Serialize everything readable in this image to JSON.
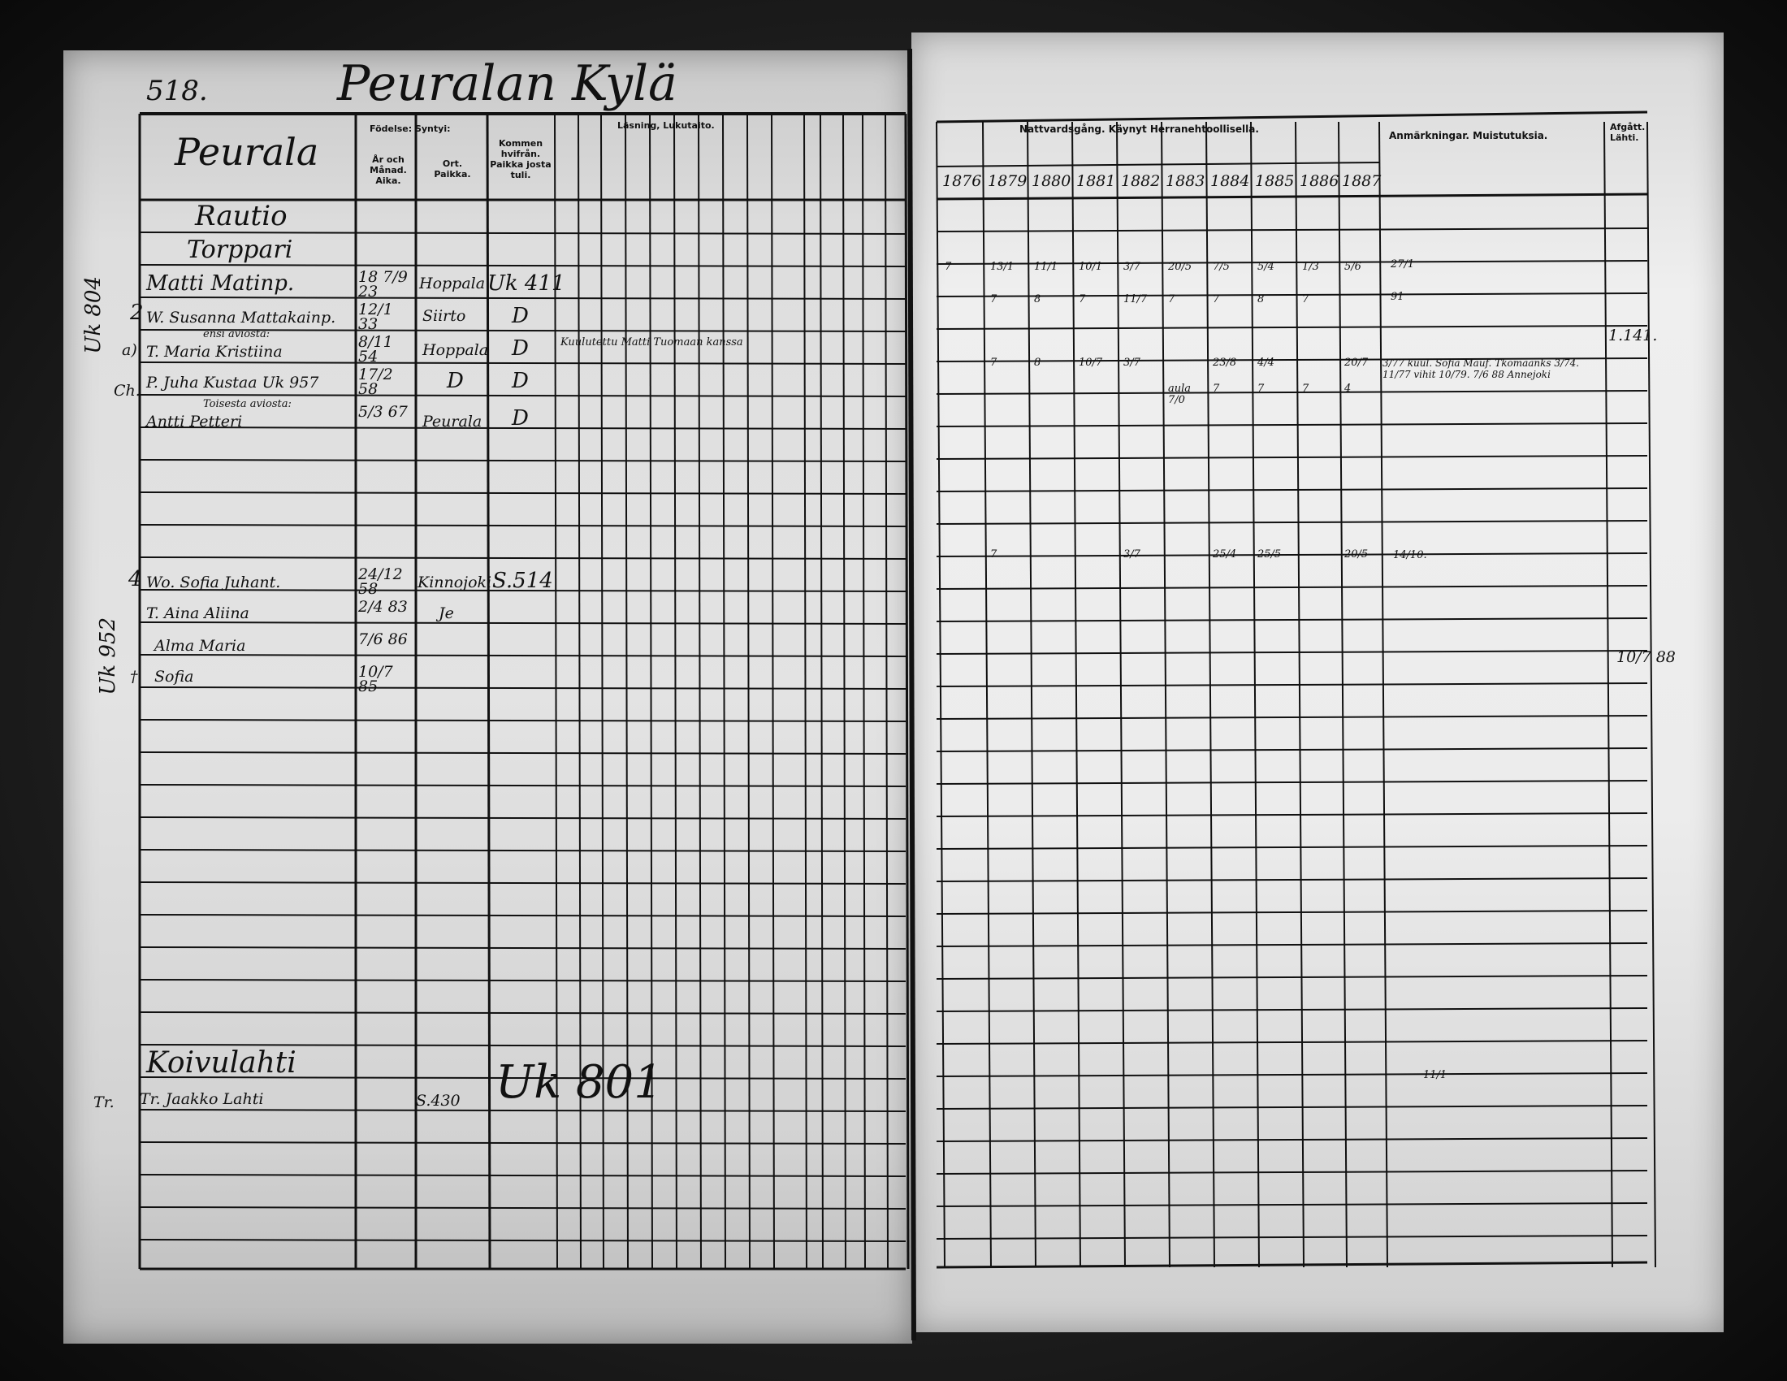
{
  "page_number": "518.",
  "village_title": "Peuralan Kylä",
  "farm_name": "Peurala",
  "left_headers": {
    "birth": "Födelse: Syntyi:",
    "year_month": "År och Månad. Aika.",
    "place": "Ort. Paikka.",
    "came_from": "Kommen hvifrån. Paikka josta tuli.",
    "reading": "Läsning, Lukutaito."
  },
  "right_headers": {
    "communion": "Nattvardsgång. Käynyt Herranehtoollisella.",
    "years": [
      "1876",
      "1879",
      "1880",
      "1881",
      "1882",
      "1883",
      "1884",
      "1885",
      "1886",
      "1887"
    ],
    "remarks": "Anmärkningar. Muistutuksia.",
    "departed": "Afgått. Lähti."
  },
  "sections": {
    "holding": "Rautio",
    "status": "Torppari",
    "holding2": "Koivulahti"
  },
  "persons": [
    {
      "name": "Matti Matinp.",
      "born": "18 7/9 23",
      "place": "Hoppala",
      "from": "Uk 411"
    },
    {
      "name": "W. Susanna Mattakainp.",
      "born": "12/1 33",
      "place": "Siirto",
      "from": "D"
    },
    {
      "name": "T. Maria Kristiina",
      "born": "8/11 54",
      "place": "Hoppala",
      "from": "D"
    },
    {
      "name": "P. Juha Kustaa Uk 957",
      "born": "17/2 58",
      "place": "D",
      "from": "D"
    },
    {
      "name": "Antti Petteri",
      "born": "5/3 67",
      "place": "Peurala",
      "from": "D"
    },
    {
      "name": "Wo. Sofia Juhant.",
      "born": "24/12 58",
      "place": "Kinnojoki",
      "from": "S.514"
    },
    {
      "name": "T. Aina Aliina",
      "born": "2/4 83",
      "place": "Je",
      "from": ""
    },
    {
      "name": "Alma Maria",
      "born": "7/6 86",
      "place": "",
      "from": ""
    },
    {
      "name": "Sofia",
      "born": "10/7 85",
      "place": "",
      "from": ""
    }
  ],
  "annotations": {
    "first_marriage": "ensi aviosta:",
    "second_marriage": "Toisesta aviosta:",
    "confirmation_note": "Kuulutettu Matti Tuomaan kanssa",
    "tenant": "Tr. Jaakko Lahti",
    "tenant_ref": "S.430",
    "tenant_uk": "Uk 801"
  },
  "margin_notes": {
    "uk804": "Uk 804",
    "uk952": "Uk 952",
    "num2": "2",
    "num4": "4",
    "a": "a)",
    "tr": "Tr.",
    "dagger": "†",
    "ch": "Ch."
  },
  "right_entries": {
    "row_matti": [
      "7",
      "13/1",
      "11/1",
      "10/1",
      "3/7",
      "20/5",
      "7/5",
      "5/4",
      "1/3",
      "5/6"
    ],
    "row_susanna": [
      "",
      "7",
      "8",
      "7",
      "11/7",
      "7",
      "7",
      "8",
      "7",
      ""
    ],
    "row_juha": [
      "",
      "7",
      "8",
      "10/7",
      "3/7",
      "",
      "23/8",
      "4/4",
      "",
      "20/7"
    ],
    "row_antti": [
      "",
      "",
      "",
      "",
      "",
      "aula 7/0",
      "7",
      "7",
      "7",
      "4"
    ],
    "row_sofia": [
      "",
      "7",
      "",
      "",
      "3/7",
      "",
      "25/4",
      "25/5",
      "",
      "20/5"
    ],
    "remark_matti": "27/1",
    "remark_susanna": "91",
    "remark_juha": "3/77 kuul. Sofia Mauf. Tkomaanks 3/74. 11/77 vihit 10/79. 7/6 88 Annejoki",
    "remark_sofia": "14/10.",
    "remark_koivulahti": "11/1",
    "departed_maria": "1.141.",
    "departed_alma": "10/7 88"
  }
}
